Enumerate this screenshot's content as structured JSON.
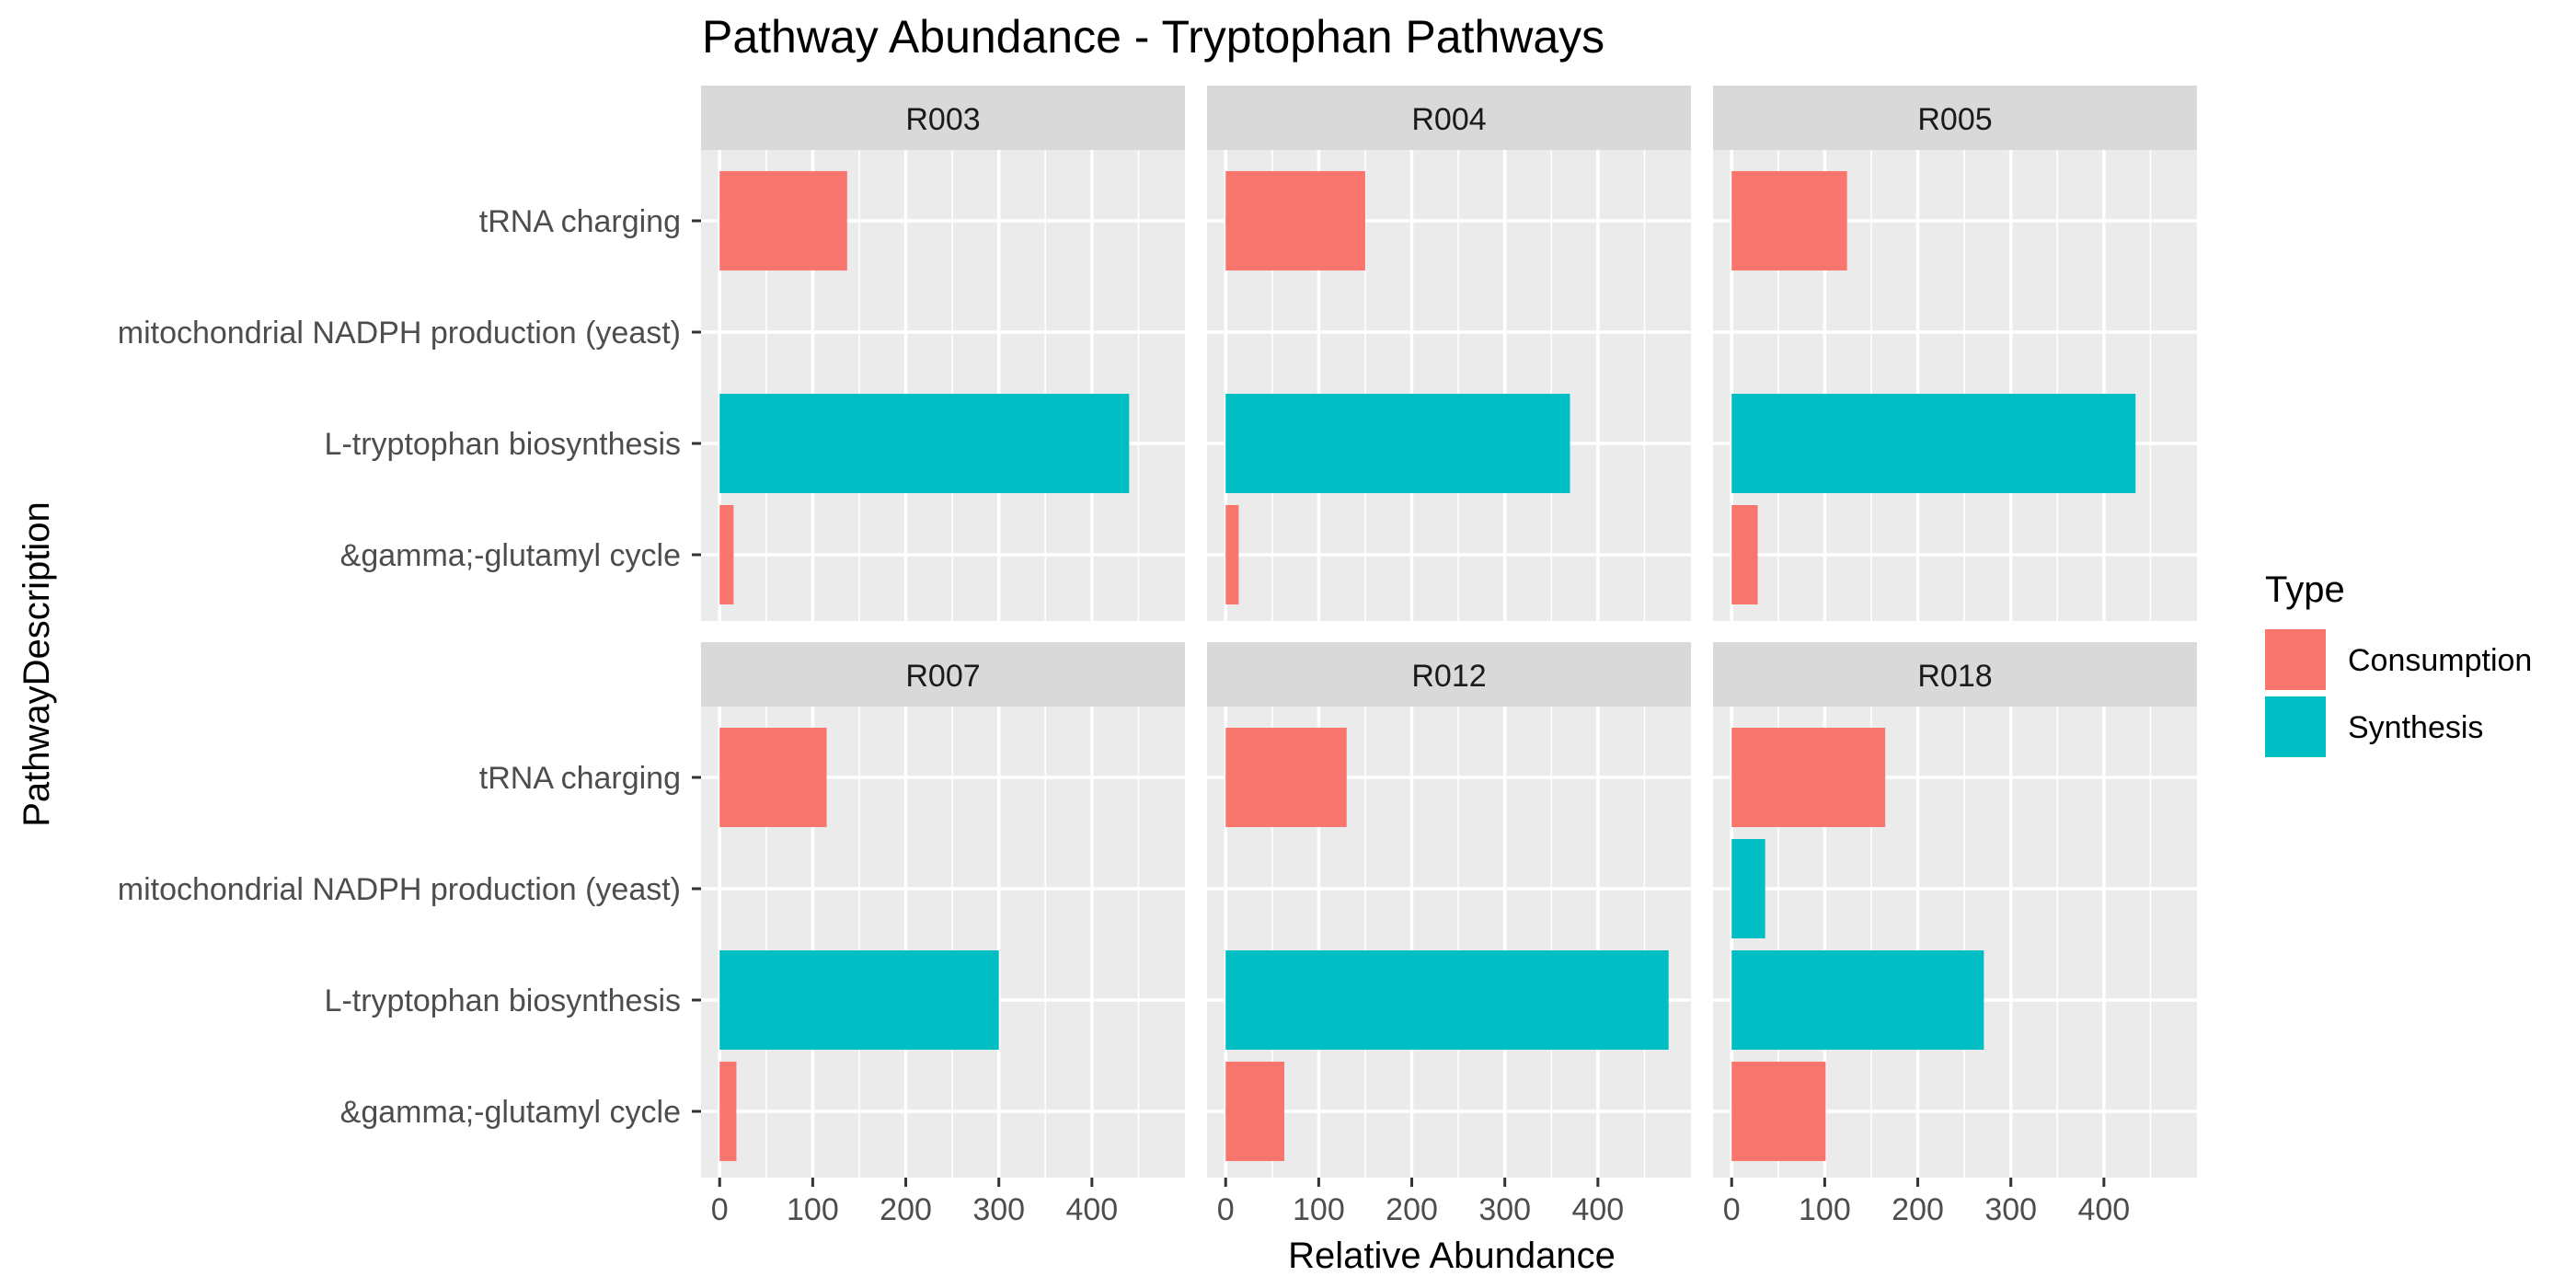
{
  "chart_data": {
    "type": "bar",
    "orientation": "horizontal",
    "title": "Pathway Abundance - Tryptophan Pathways",
    "xlabel": "Relative Abundance",
    "ylabel": "PathwayDescription",
    "categories": [
      "tRNA charging",
      "mitochondrial NADPH production (yeast)",
      "L-tryptophan biosynthesis",
      "&gamma;-glutamyl cycle"
    ],
    "xlim": [
      -20,
      500
    ],
    "xticks": [
      0,
      100,
      200,
      300,
      400
    ],
    "grid": true,
    "facet_layout": {
      "rows": 2,
      "cols": 3
    },
    "legend": {
      "title": "Type",
      "position": "right",
      "entries": [
        {
          "name": "Consumption",
          "color": "#F8766D"
        },
        {
          "name": "Synthesis",
          "color": "#00BFC4"
        }
      ]
    },
    "panels": [
      {
        "label": "R003",
        "bars": [
          {
            "category": "tRNA charging",
            "type": "Consumption",
            "value": 137
          },
          {
            "category": "L-tryptophan biosynthesis",
            "type": "Synthesis",
            "value": 440
          },
          {
            "category": "&gamma;-glutamyl cycle",
            "type": "Consumption",
            "value": 15
          }
        ]
      },
      {
        "label": "R004",
        "bars": [
          {
            "category": "tRNA charging",
            "type": "Consumption",
            "value": 150
          },
          {
            "category": "L-tryptophan biosynthesis",
            "type": "Synthesis",
            "value": 370
          },
          {
            "category": "&gamma;-glutamyl cycle",
            "type": "Consumption",
            "value": 14
          }
        ]
      },
      {
        "label": "R005",
        "bars": [
          {
            "category": "tRNA charging",
            "type": "Consumption",
            "value": 124
          },
          {
            "category": "L-tryptophan biosynthesis",
            "type": "Synthesis",
            "value": 434
          },
          {
            "category": "&gamma;-glutamyl cycle",
            "type": "Consumption",
            "value": 28
          }
        ]
      },
      {
        "label": "R007",
        "bars": [
          {
            "category": "tRNA charging",
            "type": "Consumption",
            "value": 115
          },
          {
            "category": "L-tryptophan biosynthesis",
            "type": "Synthesis",
            "value": 300
          },
          {
            "category": "&gamma;-glutamyl cycle",
            "type": "Consumption",
            "value": 18
          }
        ]
      },
      {
        "label": "R012",
        "bars": [
          {
            "category": "tRNA charging",
            "type": "Consumption",
            "value": 130
          },
          {
            "category": "L-tryptophan biosynthesis",
            "type": "Synthesis",
            "value": 476
          },
          {
            "category": "&gamma;-glutamyl cycle",
            "type": "Consumption",
            "value": 63
          }
        ]
      },
      {
        "label": "R018",
        "bars": [
          {
            "category": "tRNA charging",
            "type": "Consumption",
            "value": 165
          },
          {
            "category": "mitochondrial NADPH production (yeast)",
            "type": "Synthesis",
            "value": 36
          },
          {
            "category": "L-tryptophan biosynthesis",
            "type": "Synthesis",
            "value": 271
          },
          {
            "category": "&gamma;-glutamyl cycle",
            "type": "Consumption",
            "value": 101
          }
        ]
      }
    ]
  }
}
